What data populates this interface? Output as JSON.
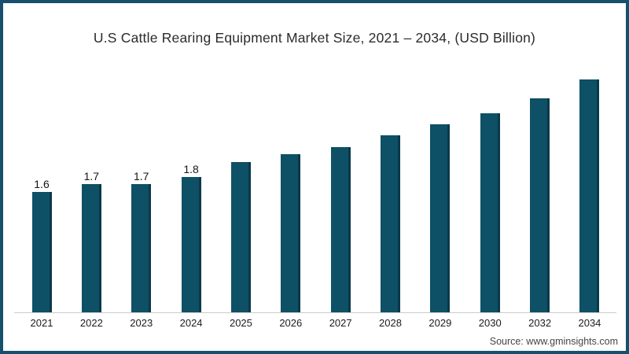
{
  "chart_data": {
    "type": "bar",
    "title": "U.S Cattle Rearing Equipment Market Size, 2021 – 2034, (USD Billion)",
    "categories": [
      "2021",
      "2022",
      "2023",
      "2024",
      "2025",
      "2026",
      "2027",
      "2028",
      "2029",
      "2030",
      "2032",
      "2034"
    ],
    "values": [
      1.6,
      1.7,
      1.7,
      1.8,
      2.0,
      2.1,
      2.2,
      2.35,
      2.5,
      2.65,
      2.85,
      3.1
    ],
    "data_labels": [
      "1.6",
      "1.7",
      "1.7",
      "1.8",
      "",
      "",
      "",
      "",
      "",
      "",
      "",
      ""
    ],
    "xlabel": "",
    "ylabel": "",
    "ylim": [
      0,
      3.7
    ],
    "grid": false,
    "legend": false,
    "y_axis_visible": false,
    "bar_color": "#0e5066",
    "axis_line_color": "#cccccc"
  },
  "frame": {
    "border_color": "#17506e"
  },
  "source": "Source: www.gminsights.com"
}
